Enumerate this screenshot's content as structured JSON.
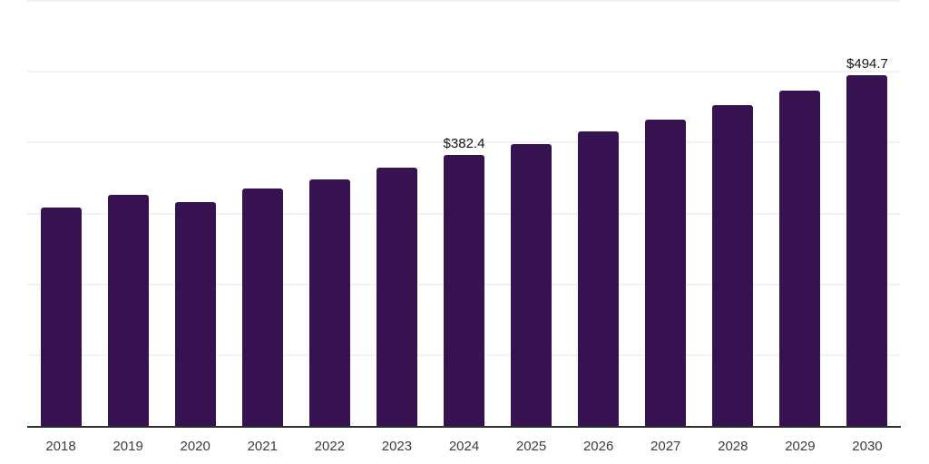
{
  "chart_data": {
    "type": "bar",
    "title": "",
    "xlabel": "",
    "ylabel": "",
    "categories": [
      "2018",
      "2019",
      "2020",
      "2021",
      "2022",
      "2023",
      "2024",
      "2025",
      "2026",
      "2027",
      "2028",
      "2029",
      "2030"
    ],
    "values": [
      308,
      326,
      316,
      335,
      348,
      365,
      382.4,
      398,
      416,
      433,
      453,
      473,
      494.7
    ],
    "annotations": [
      {
        "category": "2024",
        "text": "$382.4"
      },
      {
        "category": "2030",
        "text": "$494.7"
      }
    ],
    "ylim": [
      0,
      600
    ],
    "grid": true,
    "gridline_values": [
      100,
      200,
      300,
      400,
      500,
      600
    ],
    "legend": "none",
    "colors": {
      "bar": "#371250",
      "axis_line": "#2e2e2e",
      "gridline": "#f2f2f4",
      "data_label": "#141418",
      "tick_label": "#3c3c3c",
      "background": "#ffffff"
    }
  }
}
